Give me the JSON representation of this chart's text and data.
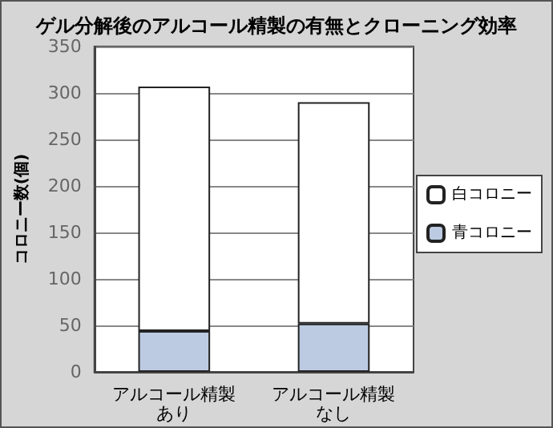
{
  "chart_data": {
    "type": "bar",
    "stacked": true,
    "title": "ゲル分解後のアルコール精製の有無とクローニング効率",
    "ylabel": "コロニー数(個)",
    "categories": [
      "アルコール精製あり",
      "アルコール精製なし"
    ],
    "series": [
      {
        "name": "青コロニー",
        "color": "#bccbe2",
        "values": [
          44,
          52
        ]
      },
      {
        "name": "白コロニー",
        "color": "#ffffff",
        "values": [
          263,
          238
        ]
      }
    ],
    "ylim": [
      0,
      350
    ],
    "yticks": [
      0,
      50,
      100,
      150,
      200,
      250,
      300,
      350
    ],
    "grid": "y",
    "legend": "right"
  }
}
